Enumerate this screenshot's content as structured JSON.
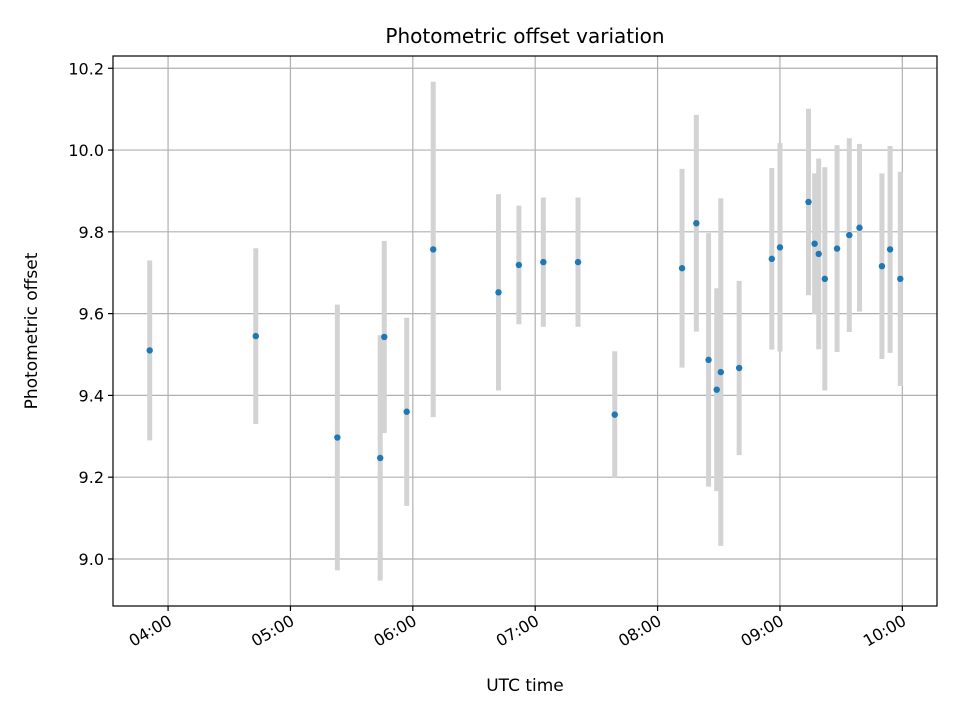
{
  "chart_data": {
    "type": "scatter",
    "title": "Photometric offset variation",
    "xlabel": "UTC time",
    "ylabel": "Photometric offset",
    "grid": true,
    "x_unit": "UTC time (HH:MM)",
    "xlim": [
      "03:33",
      "10:17"
    ],
    "ylim": [
      8.885,
      10.23
    ],
    "x_ticks": [
      "04:00",
      "05:00",
      "06:00",
      "07:00",
      "08:00",
      "09:00",
      "10:00"
    ],
    "y_ticks": [
      9.0,
      9.2,
      9.4,
      9.6,
      9.8,
      10.0,
      10.2
    ],
    "y_tick_labels": [
      "9.0",
      "9.2",
      "9.4",
      "9.6",
      "9.8",
      "10.0",
      "10.2"
    ],
    "colors": {
      "point": "#1f77b4",
      "errorbar": "#d3d3d3",
      "grid": "#b0b0b0"
    },
    "points": [
      {
        "x": "03:51",
        "y": 9.51,
        "yerr": 0.22
      },
      {
        "x": "04:43",
        "y": 9.545,
        "yerr": 0.215
      },
      {
        "x": "05:23",
        "y": 9.297,
        "yerr": 0.325
      },
      {
        "x": "05:44",
        "y": 9.247,
        "yerr": 0.3
      },
      {
        "x": "05:46",
        "y": 9.543,
        "yerr": 0.235
      },
      {
        "x": "05:57",
        "y": 9.36,
        "yerr": 0.23
      },
      {
        "x": "06:10",
        "y": 9.757,
        "yerr": 0.41
      },
      {
        "x": "06:42",
        "y": 9.652,
        "yerr": 0.24
      },
      {
        "x": "06:52",
        "y": 9.719,
        "yerr": 0.145
      },
      {
        "x": "07:04",
        "y": 9.726,
        "yerr": 0.158
      },
      {
        "x": "07:21",
        "y": 9.726,
        "yerr": 0.158
      },
      {
        "x": "07:39",
        "y": 9.353,
        "yerr": 0.155
      },
      {
        "x": "08:12",
        "y": 9.711,
        "yerr": 0.243
      },
      {
        "x": "08:19",
        "y": 9.821,
        "yerr": 0.265
      },
      {
        "x": "08:25",
        "y": 9.487,
        "yerr": 0.31
      },
      {
        "x": "08:29",
        "y": 9.414,
        "yerr": 0.248
      },
      {
        "x": "08:31",
        "y": 9.457,
        "yerr": 0.425
      },
      {
        "x": "08:40",
        "y": 9.467,
        "yerr": 0.213
      },
      {
        "x": "08:56",
        "y": 9.734,
        "yerr": 0.222
      },
      {
        "x": "09:00",
        "y": 9.762,
        "yerr": 0.255
      },
      {
        "x": "09:14",
        "y": 9.873,
        "yerr": 0.228
      },
      {
        "x": "09:17",
        "y": 9.771,
        "yerr": 0.172
      },
      {
        "x": "09:19",
        "y": 9.746,
        "yerr": 0.233
      },
      {
        "x": "09:22",
        "y": 9.685,
        "yerr": 0.273
      },
      {
        "x": "09:28",
        "y": 9.759,
        "yerr": 0.253
      },
      {
        "x": "09:34",
        "y": 9.792,
        "yerr": 0.237
      },
      {
        "x": "09:39",
        "y": 9.81,
        "yerr": 0.205
      },
      {
        "x": "09:50",
        "y": 9.716,
        "yerr": 0.227
      },
      {
        "x": "09:54",
        "y": 9.757,
        "yerr": 0.253
      },
      {
        "x": "09:59",
        "y": 9.685,
        "yerr": 0.262
      }
    ]
  }
}
